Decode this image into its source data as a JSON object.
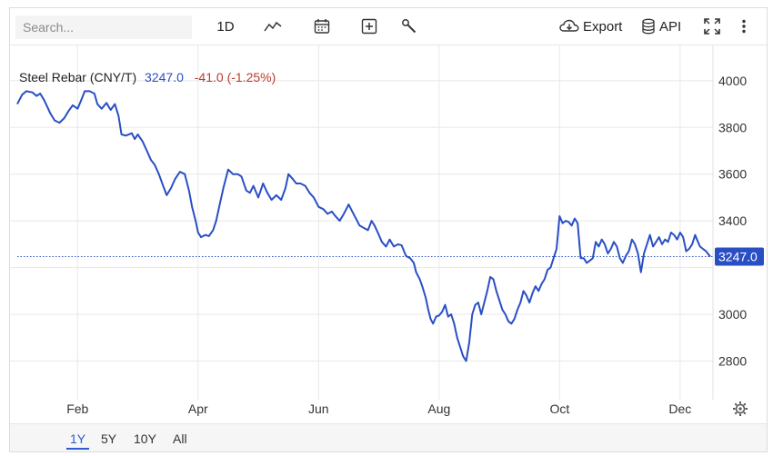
{
  "toolbar": {
    "search_placeholder": "Search...",
    "interval_label": "1D",
    "export_label": "Export",
    "api_label": "API"
  },
  "legend": {
    "series_name": "Steel Rebar (CNY/T)",
    "last_value": "3247.0",
    "change": "-41.0 (-1.25%)",
    "series_color": "#2a4fc4",
    "change_color": "#c0392b"
  },
  "price_tag": "3247.0",
  "ranges": [
    "1Y",
    "5Y",
    "10Y",
    "All"
  ],
  "active_range": "1Y",
  "chart_data": {
    "type": "line",
    "title": "Steel Rebar (CNY/T)",
    "xlabel": "",
    "ylabel": "",
    "ylim": [
      2650,
      4120
    ],
    "xlim": [
      0,
      11.5
    ],
    "x_ticks": [
      {
        "label": "Feb",
        "x": 1.0
      },
      {
        "label": "Apr",
        "x": 3.0
      },
      {
        "label": "Jun",
        "x": 5.0
      },
      {
        "label": "Aug",
        "x": 7.0
      },
      {
        "label": "Oct",
        "x": 9.0
      },
      {
        "label": "Dec",
        "x": 11.0
      }
    ],
    "y_ticks": [
      2800,
      3000,
      3200,
      3400,
      3600,
      3800,
      4000
    ],
    "y_tick_labels": [
      "2800",
      "3000",
      "3400",
      "3600",
      "3800",
      "4000"
    ],
    "grid": true,
    "reference_line": 3247.0,
    "series": [
      {
        "name": "Steel Rebar (CNY/T)",
        "color": "#2a4fc4",
        "points": [
          [
            0.0,
            3900
          ],
          [
            0.08,
            3940
          ],
          [
            0.15,
            3955
          ],
          [
            0.25,
            3950
          ],
          [
            0.32,
            3935
          ],
          [
            0.38,
            3945
          ],
          [
            0.45,
            3915
          ],
          [
            0.55,
            3860
          ],
          [
            0.62,
            3830
          ],
          [
            0.7,
            3820
          ],
          [
            0.78,
            3840
          ],
          [
            0.85,
            3870
          ],
          [
            0.92,
            3895
          ],
          [
            1.0,
            3880
          ],
          [
            1.05,
            3910
          ],
          [
            1.12,
            3955
          ],
          [
            1.2,
            3955
          ],
          [
            1.28,
            3945
          ],
          [
            1.33,
            3900
          ],
          [
            1.4,
            3880
          ],
          [
            1.48,
            3905
          ],
          [
            1.55,
            3875
          ],
          [
            1.62,
            3900
          ],
          [
            1.68,
            3850
          ],
          [
            1.73,
            3770
          ],
          [
            1.8,
            3765
          ],
          [
            1.9,
            3775
          ],
          [
            1.95,
            3750
          ],
          [
            2.0,
            3770
          ],
          [
            2.08,
            3740
          ],
          [
            2.15,
            3700
          ],
          [
            2.22,
            3660
          ],
          [
            2.28,
            3640
          ],
          [
            2.35,
            3600
          ],
          [
            2.42,
            3550
          ],
          [
            2.48,
            3510
          ],
          [
            2.55,
            3540
          ],
          [
            2.62,
            3580
          ],
          [
            2.7,
            3610
          ],
          [
            2.78,
            3600
          ],
          [
            2.85,
            3530
          ],
          [
            2.9,
            3460
          ],
          [
            2.96,
            3400
          ],
          [
            3.0,
            3350
          ],
          [
            3.05,
            3330
          ],
          [
            3.12,
            3340
          ],
          [
            3.18,
            3335
          ],
          [
            3.25,
            3360
          ],
          [
            3.3,
            3400
          ],
          [
            3.36,
            3470
          ],
          [
            3.42,
            3540
          ],
          [
            3.5,
            3620
          ],
          [
            3.58,
            3600
          ],
          [
            3.66,
            3600
          ],
          [
            3.72,
            3590
          ],
          [
            3.8,
            3530
          ],
          [
            3.86,
            3520
          ],
          [
            3.92,
            3550
          ],
          [
            4.0,
            3500
          ],
          [
            4.08,
            3560
          ],
          [
            4.15,
            3520
          ],
          [
            4.22,
            3490
          ],
          [
            4.3,
            3510
          ],
          [
            4.38,
            3490
          ],
          [
            4.45,
            3540
          ],
          [
            4.5,
            3600
          ],
          [
            4.57,
            3580
          ],
          [
            4.63,
            3560
          ],
          [
            4.7,
            3560
          ],
          [
            4.78,
            3550
          ],
          [
            4.85,
            3520
          ],
          [
            4.92,
            3500
          ],
          [
            5.0,
            3460
          ],
          [
            5.08,
            3450
          ],
          [
            5.15,
            3430
          ],
          [
            5.22,
            3440
          ],
          [
            5.28,
            3420
          ],
          [
            5.35,
            3400
          ],
          [
            5.42,
            3430
          ],
          [
            5.5,
            3470
          ],
          [
            5.56,
            3440
          ],
          [
            5.62,
            3410
          ],
          [
            5.68,
            3380
          ],
          [
            5.75,
            3370
          ],
          [
            5.82,
            3360
          ],
          [
            5.88,
            3400
          ],
          [
            5.93,
            3380
          ],
          [
            6.0,
            3340
          ],
          [
            6.05,
            3310
          ],
          [
            6.12,
            3290
          ],
          [
            6.18,
            3320
          ],
          [
            6.25,
            3290
          ],
          [
            6.32,
            3300
          ],
          [
            6.38,
            3295
          ],
          [
            6.45,
            3250
          ],
          [
            6.52,
            3240
          ],
          [
            6.58,
            3220
          ],
          [
            6.62,
            3180
          ],
          [
            6.68,
            3150
          ],
          [
            6.72,
            3120
          ],
          [
            6.78,
            3070
          ],
          [
            6.82,
            3020
          ],
          [
            6.86,
            2980
          ],
          [
            6.9,
            2960
          ],
          [
            6.95,
            2990
          ],
          [
            7.0,
            2995
          ],
          [
            7.05,
            3010
          ],
          [
            7.1,
            3040
          ],
          [
            7.15,
            2990
          ],
          [
            7.2,
            3000
          ],
          [
            7.25,
            2960
          ],
          [
            7.3,
            2900
          ],
          [
            7.35,
            2860
          ],
          [
            7.4,
            2820
          ],
          [
            7.45,
            2800
          ],
          [
            7.5,
            2880
          ],
          [
            7.55,
            3000
          ],
          [
            7.6,
            3040
          ],
          [
            7.65,
            3050
          ],
          [
            7.7,
            3000
          ],
          [
            7.75,
            3050
          ],
          [
            7.8,
            3100
          ],
          [
            7.85,
            3160
          ],
          [
            7.9,
            3150
          ],
          [
            7.95,
            3100
          ],
          [
            8.0,
            3060
          ],
          [
            8.05,
            3020
          ],
          [
            8.1,
            3000
          ],
          [
            8.15,
            2970
          ],
          [
            8.2,
            2960
          ],
          [
            8.25,
            2980
          ],
          [
            8.3,
            3020
          ],
          [
            8.35,
            3050
          ],
          [
            8.4,
            3100
          ],
          [
            8.45,
            3080
          ],
          [
            8.5,
            3050
          ],
          [
            8.55,
            3090
          ],
          [
            8.6,
            3120
          ],
          [
            8.65,
            3100
          ],
          [
            8.7,
            3130
          ],
          [
            8.75,
            3150
          ],
          [
            8.8,
            3190
          ],
          [
            8.85,
            3200
          ],
          [
            8.9,
            3240
          ],
          [
            8.95,
            3280
          ],
          [
            9.0,
            3420
          ],
          [
            9.05,
            3390
          ],
          [
            9.1,
            3400
          ],
          [
            9.15,
            3395
          ],
          [
            9.2,
            3380
          ],
          [
            9.25,
            3410
          ],
          [
            9.3,
            3390
          ],
          [
            9.35,
            3240
          ],
          [
            9.4,
            3240
          ],
          [
            9.45,
            3220
          ],
          [
            9.5,
            3230
          ],
          [
            9.55,
            3240
          ],
          [
            9.6,
            3310
          ],
          [
            9.65,
            3290
          ],
          [
            9.7,
            3320
          ],
          [
            9.75,
            3300
          ],
          [
            9.8,
            3260
          ],
          [
            9.85,
            3280
          ],
          [
            9.9,
            3310
          ],
          [
            9.95,
            3290
          ],
          [
            10.0,
            3240
          ],
          [
            10.05,
            3220
          ],
          [
            10.1,
            3250
          ],
          [
            10.15,
            3270
          ],
          [
            10.2,
            3320
          ],
          [
            10.25,
            3300
          ],
          [
            10.3,
            3260
          ],
          [
            10.35,
            3180
          ],
          [
            10.4,
            3260
          ],
          [
            10.45,
            3300
          ],
          [
            10.5,
            3340
          ],
          [
            10.55,
            3290
          ],
          [
            10.6,
            3310
          ],
          [
            10.65,
            3330
          ],
          [
            10.7,
            3300
          ],
          [
            10.75,
            3320
          ],
          [
            10.8,
            3310
          ],
          [
            10.85,
            3350
          ],
          [
            10.9,
            3340
          ],
          [
            10.95,
            3320
          ],
          [
            11.0,
            3350
          ],
          [
            11.05,
            3330
          ],
          [
            11.1,
            3270
          ],
          [
            11.15,
            3280
          ],
          [
            11.2,
            3300
          ],
          [
            11.25,
            3340
          ],
          [
            11.28,
            3320
          ],
          [
            11.33,
            3290
          ],
          [
            11.38,
            3280
          ],
          [
            11.43,
            3270
          ],
          [
            11.5,
            3247
          ]
        ]
      }
    ]
  }
}
